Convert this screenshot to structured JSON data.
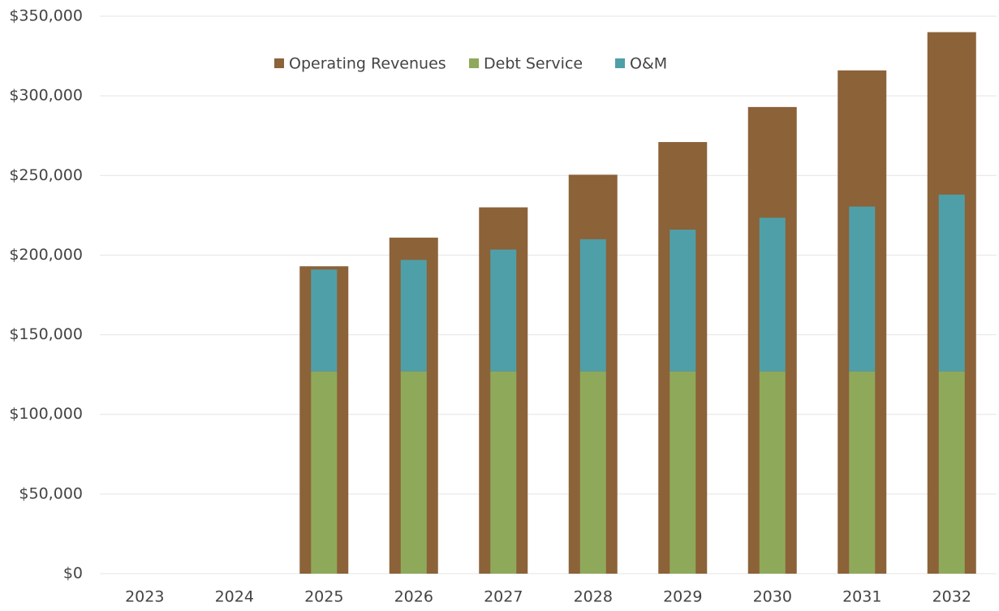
{
  "chart_data": {
    "type": "bar",
    "categories": [
      "2023",
      "2024",
      "2025",
      "2026",
      "2027",
      "2028",
      "2029",
      "2030",
      "2031",
      "2032"
    ],
    "series": [
      {
        "name": "Operating Revenues",
        "color": "#8c6239",
        "values": [
          null,
          null,
          193000,
          211000,
          230000,
          250500,
          271000,
          293000,
          316000,
          340000
        ]
      },
      {
        "name": "Debt Service",
        "color": "#8fa95a",
        "values": [
          null,
          null,
          127000,
          127000,
          127000,
          127000,
          127000,
          127000,
          127000,
          127000
        ]
      },
      {
        "name": "O&M",
        "color": "#4f9fa8",
        "values": [
          null,
          null,
          64000,
          70000,
          76500,
          83000,
          89000,
          96500,
          103500,
          111000
        ]
      }
    ],
    "ylim": [
      0,
      350000
    ],
    "yticks": [
      {
        "value": 0,
        "label": "$0"
      },
      {
        "value": 50000,
        "label": "$50,000"
      },
      {
        "value": 100000,
        "label": "$100,000"
      },
      {
        "value": 150000,
        "label": "$150,000"
      },
      {
        "value": 200000,
        "label": "$200,000"
      },
      {
        "value": 250000,
        "label": "$250,000"
      },
      {
        "value": 300000,
        "label": "$300,000"
      },
      {
        "value": 350000,
        "label": "$350,000"
      }
    ],
    "grid": true,
    "legend": "top"
  }
}
